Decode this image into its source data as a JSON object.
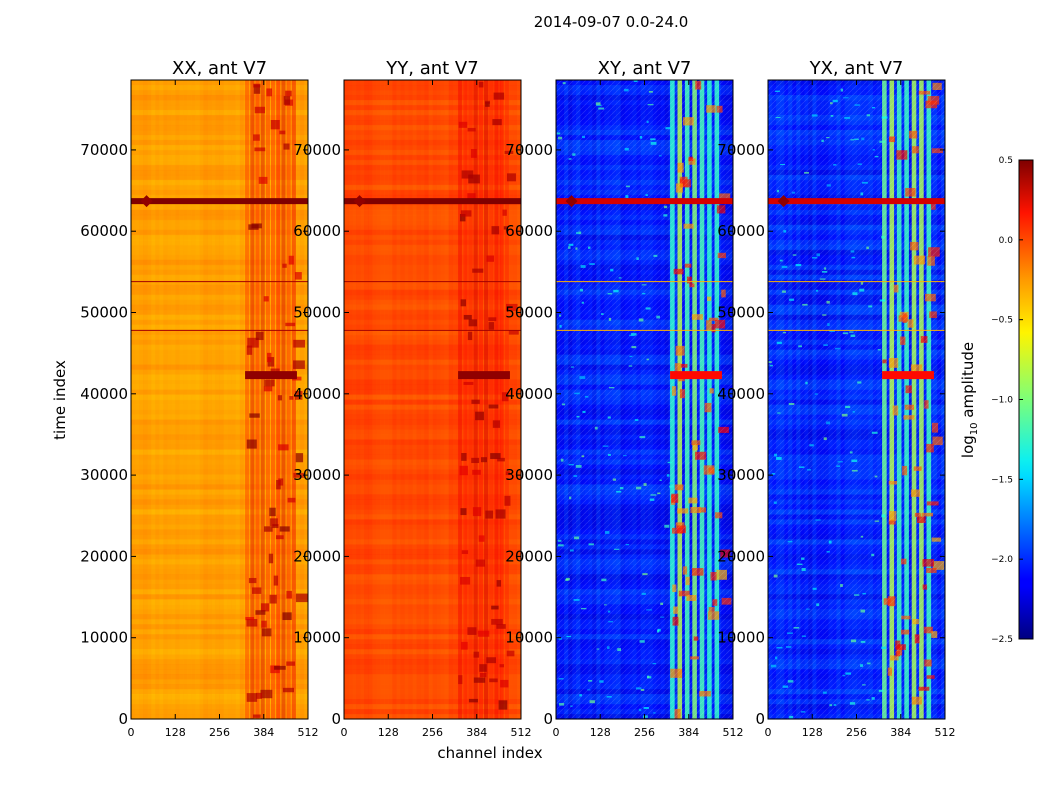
{
  "chart_data": {
    "type": "heatmap",
    "suptitle": "2014-09-07 0.0-24.0",
    "xlabel": "channel index",
    "ylabel": "time index",
    "colorbar_label": "log",
    "colorbar_label_sub": "10",
    "colorbar_label_suffix": " amplitude",
    "xlim": [
      0,
      512
    ],
    "ylim": [
      0,
      78600
    ],
    "xticks": [
      0,
      128,
      256,
      384,
      512
    ],
    "yticks": [
      0,
      10000,
      20000,
      30000,
      40000,
      50000,
      60000,
      70000
    ],
    "colorbar_range": [
      -2.5,
      0.5
    ],
    "colorbar_ticks": [
      -2.5,
      -2.0,
      -1.5,
      -1.0,
      -0.5,
      0.0,
      0.5
    ],
    "colorbar_tick_labels": [
      "−2.5",
      "−2.0",
      "−1.5",
      "−1.0",
      "−0.5",
      "0.0",
      "0.5"
    ],
    "colormap": "jet",
    "panels": [
      {
        "name": "XX",
        "title": "XX, ant V7",
        "typical_log10_amplitude": -0.35,
        "rfi_band_channels": [
          330,
          480
        ],
        "rfi_log10_amplitude": 0.1
      },
      {
        "name": "YY",
        "title": "YY, ant V7",
        "typical_log10_amplitude": -0.1,
        "rfi_band_channels": [
          330,
          480
        ],
        "rfi_log10_amplitude": 0.15
      },
      {
        "name": "XY",
        "title": "XY, ant V7",
        "typical_log10_amplitude": -2.05,
        "rfi_band_channels": [
          330,
          480
        ],
        "rfi_log10_amplitude": -1.0
      },
      {
        "name": "YX",
        "title": "YX, ant V7",
        "typical_log10_amplitude": -2.05,
        "rfi_band_channels": [
          330,
          480
        ],
        "rfi_log10_amplitude": -1.0
      }
    ],
    "features": [
      {
        "type": "strong horizontal RFI band",
        "time_index": 63700
      },
      {
        "type": "horizontal line",
        "time_index": 53800
      },
      {
        "type": "horizontal line",
        "time_index": 47800
      },
      {
        "type": "strong feature block",
        "time_index": 42300
      }
    ]
  }
}
